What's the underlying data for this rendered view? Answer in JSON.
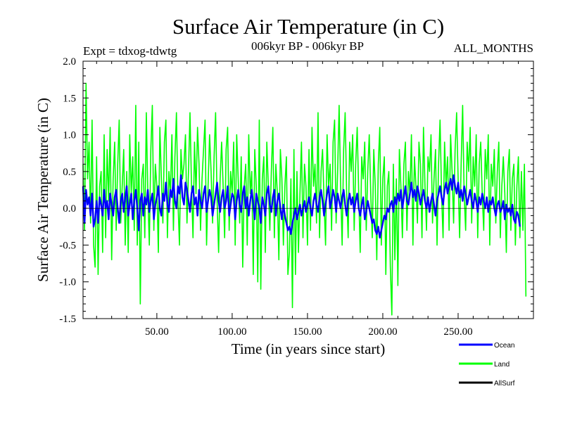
{
  "chart_data": {
    "type": "line",
    "title": "Surface Air Temperature (in C)",
    "subtitle_left": "Expt = tdxog-tdwtg",
    "subtitle_center": "006kyr BP - 006kyr BP",
    "subtitle_right": "ALL_MONTHS",
    "xlabel": "Time (in years since start)",
    "ylabel": "Surface Air Temperature (in C)",
    "xlim": [
      1,
      300
    ],
    "ylim": [
      -1.5,
      2.0
    ],
    "x_ticks": [
      50,
      100,
      150,
      200,
      250
    ],
    "x_tick_labels": [
      "50.00",
      "100.00",
      "150.00",
      "200.00",
      "250.00"
    ],
    "y_ticks": [
      -1.5,
      -1.0,
      -0.5,
      0.0,
      0.5,
      1.0,
      1.5,
      2.0
    ],
    "y_tick_labels": [
      "-1.5",
      "-1.0",
      "-0.5",
      "0.0",
      "0.5",
      "1.0",
      "1.5",
      "2.0"
    ],
    "zero_line": true,
    "grid": false,
    "legend_position": "bottom-right, below plot",
    "x_step": 1,
    "series": [
      {
        "name": "Land",
        "color": "#00ff00",
        "values": [
          0.6,
          -0.3,
          1.7,
          0.4,
          0.9,
          -0.2,
          1.2,
          -0.5,
          -0.8,
          0.7,
          -0.9,
          0.3,
          0.5,
          -0.6,
          1.0,
          -0.4,
          0.8,
          0.1,
          1.1,
          -0.7,
          0.4,
          0.9,
          -0.3,
          0.6,
          1.2,
          -0.2,
          0.3,
          0.8,
          -0.5,
          0.5,
          -0.6,
          1.0,
          0.2,
          0.7,
          -0.3,
          1.4,
          -0.5,
          0.9,
          -1.3,
          0.4,
          0.6,
          -0.4,
          1.3,
          0.2,
          -0.5,
          0.8,
          1.4,
          -0.3,
          0.6,
          0.3,
          -0.6,
          1.1,
          0.4,
          -0.2,
          0.9,
          1.2,
          -0.4,
          0.5,
          0.2,
          1.0,
          -0.3,
          0.7,
          1.3,
          0.1,
          -0.5,
          0.8,
          0.4,
          0.6,
          1.0,
          -0.2,
          0.5,
          1.3,
          0.3,
          -0.4,
          0.9,
          0.2,
          1.1,
          0.6,
          -0.3,
          0.4,
          0.8,
          1.2,
          -0.5,
          0.3,
          1.0,
          0.5,
          -0.2,
          0.7,
          1.3,
          0.1,
          -0.6,
          0.4,
          0.9,
          0.3,
          -0.4,
          0.8,
          1.1,
          -0.3,
          0.5,
          0.2,
          0.9,
          -0.5,
          1.0,
          0.4,
          -0.2,
          0.7,
          -0.8,
          0.3,
          0.6,
          -0.5,
          1.0,
          0.2,
          0.5,
          -0.9,
          0.8,
          0.3,
          -1.0,
          1.2,
          -1.1,
          0.4,
          0.7,
          -0.6,
          0.9,
          0.3,
          -0.3,
          0.5,
          1.1,
          -0.4,
          0.6,
          0.2,
          -0.7,
          0.8,
          0.4,
          -0.5,
          0.3,
          0.7,
          -0.9,
          -0.6,
          0.4,
          -1.35,
          0.8,
          -0.9,
          0.5,
          -0.6,
          0.2,
          0.9,
          -0.4,
          0.6,
          0.3,
          -0.5,
          0.8,
          -0.3,
          1.1,
          0.3,
          0.6,
          -0.2,
          1.3,
          -0.4,
          0.5,
          0.8,
          0.1,
          -0.5,
          1.0,
          0.3,
          0.6,
          -0.3,
          0.9,
          1.2,
          -0.2,
          0.5,
          1.4,
          0.3,
          -0.5,
          0.8,
          1.3,
          0.2,
          -0.4,
          0.9,
          0.5,
          1.0,
          -0.3,
          0.6,
          1.1,
          0.2,
          -0.6,
          0.7,
          0.4,
          0.9,
          -0.3,
          0.5,
          1.0,
          0.2,
          -0.4,
          0.8,
          0.3,
          -0.7,
          0.6,
          1.1,
          -0.5,
          0.4,
          0.7,
          -0.9,
          0.3,
          0.5,
          -0.8,
          -1.45,
          0.6,
          -0.7,
          0.4,
          -1.05,
          0.8,
          0.3,
          -0.4,
          0.6,
          0.9,
          -0.3,
          0.5,
          0.2,
          1.0,
          -0.5,
          0.7,
          0.3,
          -0.2,
          0.9,
          0.6,
          -0.4,
          1.1,
          0.3,
          -0.3,
          0.7,
          0.5,
          1.0,
          -0.2,
          0.4,
          0.8,
          -0.5,
          0.6,
          1.2,
          0.2,
          -0.4,
          0.9,
          0.3,
          0.7,
          -0.3,
          1.0,
          0.5,
          -0.2,
          0.8,
          1.3,
          0.4,
          -0.4,
          0.6,
          1.4,
          0.2,
          -0.3,
          0.9,
          0.5,
          1.1,
          -0.2,
          0.7,
          0.3,
          1.0,
          -0.4,
          0.6,
          0.9,
          0.2,
          -0.3,
          0.8,
          0.4,
          1.0,
          -0.5,
          0.6,
          0.3,
          0.8,
          -0.2,
          0.5,
          0.9,
          -0.4,
          0.3,
          0.7,
          0.2,
          -0.6,
          0.5,
          0.8,
          -0.3,
          0.4,
          0.6,
          -0.5,
          0.3,
          0.7,
          -0.4,
          0.5,
          -0.3,
          0.6,
          -1.2
        ]
      },
      {
        "name": "Ocean",
        "color": "#0000ff",
        "values": [
          0.3,
          -0.2,
          0.25,
          0.05,
          0.15,
          -0.1,
          0.2,
          -0.25,
          -0.15,
          0.1,
          -0.2,
          0.15,
          0.05,
          -0.1,
          0.25,
          0.0,
          0.1,
          -0.15,
          0.2,
          0.05,
          -0.1,
          0.15,
          0.25,
          0.0,
          -0.2,
          0.1,
          0.2,
          -0.05,
          0.15,
          0.3,
          -0.1,
          0.05,
          0.2,
          -0.15,
          0.1,
          0.25,
          0.0,
          -0.3,
          0.1,
          0.2,
          -0.1,
          0.15,
          0.05,
          0.25,
          -0.05,
          0.1,
          0.2,
          -0.15,
          0.05,
          0.15,
          0.3,
          0.0,
          -0.1,
          0.2,
          0.1,
          0.35,
          0.05,
          -0.05,
          0.25,
          0.15,
          0.4,
          0.1,
          0.0,
          0.3,
          0.2,
          0.45,
          0.15,
          0.05,
          0.35,
          0.25,
          0.1,
          -0.05,
          0.2,
          0.3,
          0.05,
          0.15,
          -0.1,
          0.25,
          0.1,
          0.0,
          0.2,
          0.3,
          -0.05,
          0.1,
          0.25,
          0.15,
          -0.1,
          0.05,
          0.2,
          0.35,
          0.1,
          -0.05,
          0.15,
          0.25,
          0.0,
          0.1,
          0.3,
          -0.1,
          0.05,
          0.2,
          0.15,
          -0.15,
          0.1,
          0.25,
          0.05,
          -0.05,
          0.2,
          0.3,
          0.0,
          0.15,
          -0.1,
          0.1,
          0.25,
          0.05,
          -0.15,
          0.2,
          0.1,
          0.0,
          -0.2,
          0.15,
          0.05,
          -0.1,
          0.2,
          0.3,
          0.05,
          -0.05,
          0.15,
          0.25,
          -0.1,
          0.1,
          0.2,
          0.0,
          -0.15,
          0.05,
          -0.1,
          -0.2,
          -0.3,
          -0.25,
          -0.35,
          -0.2,
          -0.1,
          0.0,
          -0.15,
          -0.05,
          0.05,
          -0.1,
          0.0,
          0.1,
          -0.05,
          0.05,
          0.15,
          0.0,
          -0.1,
          0.1,
          0.2,
          0.05,
          -0.05,
          0.15,
          0.25,
          0.1,
          -0.1,
          0.05,
          0.2,
          0.3,
          0.0,
          0.1,
          0.25,
          0.15,
          -0.05,
          0.2,
          0.1,
          0.0,
          0.15,
          0.25,
          0.05,
          -0.1,
          0.1,
          0.2,
          0.05,
          0.15,
          -0.05,
          0.1,
          0.2,
          0.0,
          -0.1,
          0.05,
          0.15,
          -0.15,
          -0.05,
          0.1,
          0.0,
          -0.1,
          -0.2,
          -0.15,
          -0.3,
          -0.35,
          -0.25,
          -0.4,
          -0.3,
          -0.2,
          -0.1,
          -0.15,
          0.0,
          -0.05,
          0.05,
          0.1,
          -0.05,
          0.15,
          0.05,
          0.2,
          0.1,
          0.25,
          0.0,
          0.15,
          0.3,
          0.1,
          0.05,
          0.2,
          0.35,
          0.15,
          0.25,
          0.1,
          0.3,
          0.2,
          0.05,
          0.15,
          0.25,
          0.1,
          0.0,
          0.15,
          -0.05,
          0.1,
          0.2,
          0.05,
          -0.1,
          0.1,
          0.2,
          0.3,
          0.15,
          0.05,
          0.25,
          0.35,
          0.2,
          0.3,
          0.4,
          0.25,
          0.45,
          0.3,
          0.2,
          0.35,
          0.15,
          0.25,
          0.1,
          0.3,
          0.2,
          0.05,
          0.15,
          0.25,
          0.1,
          0.0,
          0.2,
          0.1,
          -0.05,
          0.15,
          0.05,
          0.2,
          0.1,
          0.0,
          0.15,
          -0.05,
          0.1,
          0.05,
          0.15,
          0.0,
          -0.1,
          0.05,
          0.1,
          -0.05,
          0.0,
          0.1,
          -0.15,
          0.05,
          -0.05,
          0.0,
          -0.1,
          0.05,
          -0.15,
          -0.2,
          -0.05,
          -0.1,
          -0.25
        ]
      }
    ],
    "legend": [
      {
        "label": "Ocean",
        "color": "#0000ff"
      },
      {
        "label": "Land",
        "color": "#00ff00"
      },
      {
        "label": "AllSurf",
        "color": "#000000"
      }
    ]
  }
}
